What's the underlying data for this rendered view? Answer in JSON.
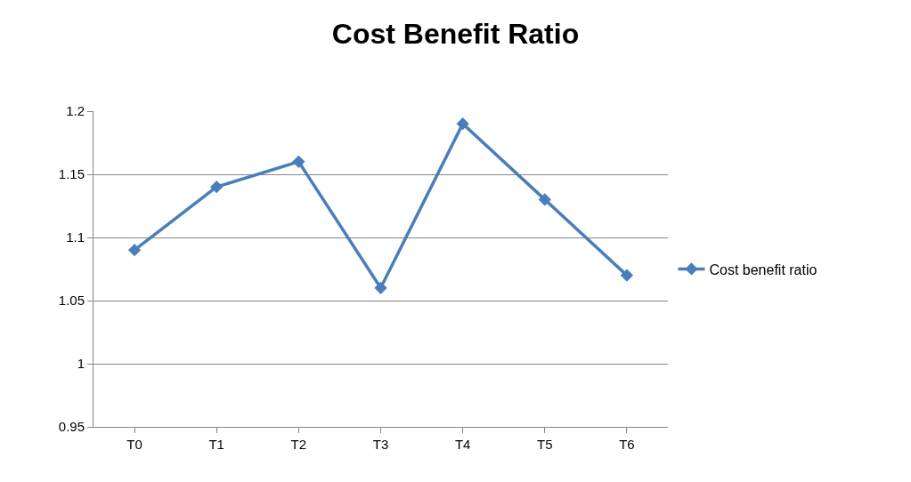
{
  "chart_data": {
    "type": "line",
    "title": "Cost Benefit Ratio",
    "categories": [
      "T0",
      "T1",
      "T2",
      "T3",
      "T4",
      "T5",
      "T6"
    ],
    "series": [
      {
        "name": "Cost benefit ratio",
        "color": "#4a7ebb",
        "values": [
          1.09,
          1.14,
          1.16,
          1.06,
          1.19,
          1.13,
          1.07
        ]
      }
    ],
    "ylim": [
      0.95,
      1.2
    ],
    "yticks": [
      0.95,
      1,
      1.05,
      1.1,
      1.15,
      1.2
    ],
    "grid": "y",
    "legend": "right",
    "marker": "diamond",
    "line_style": "solid"
  }
}
